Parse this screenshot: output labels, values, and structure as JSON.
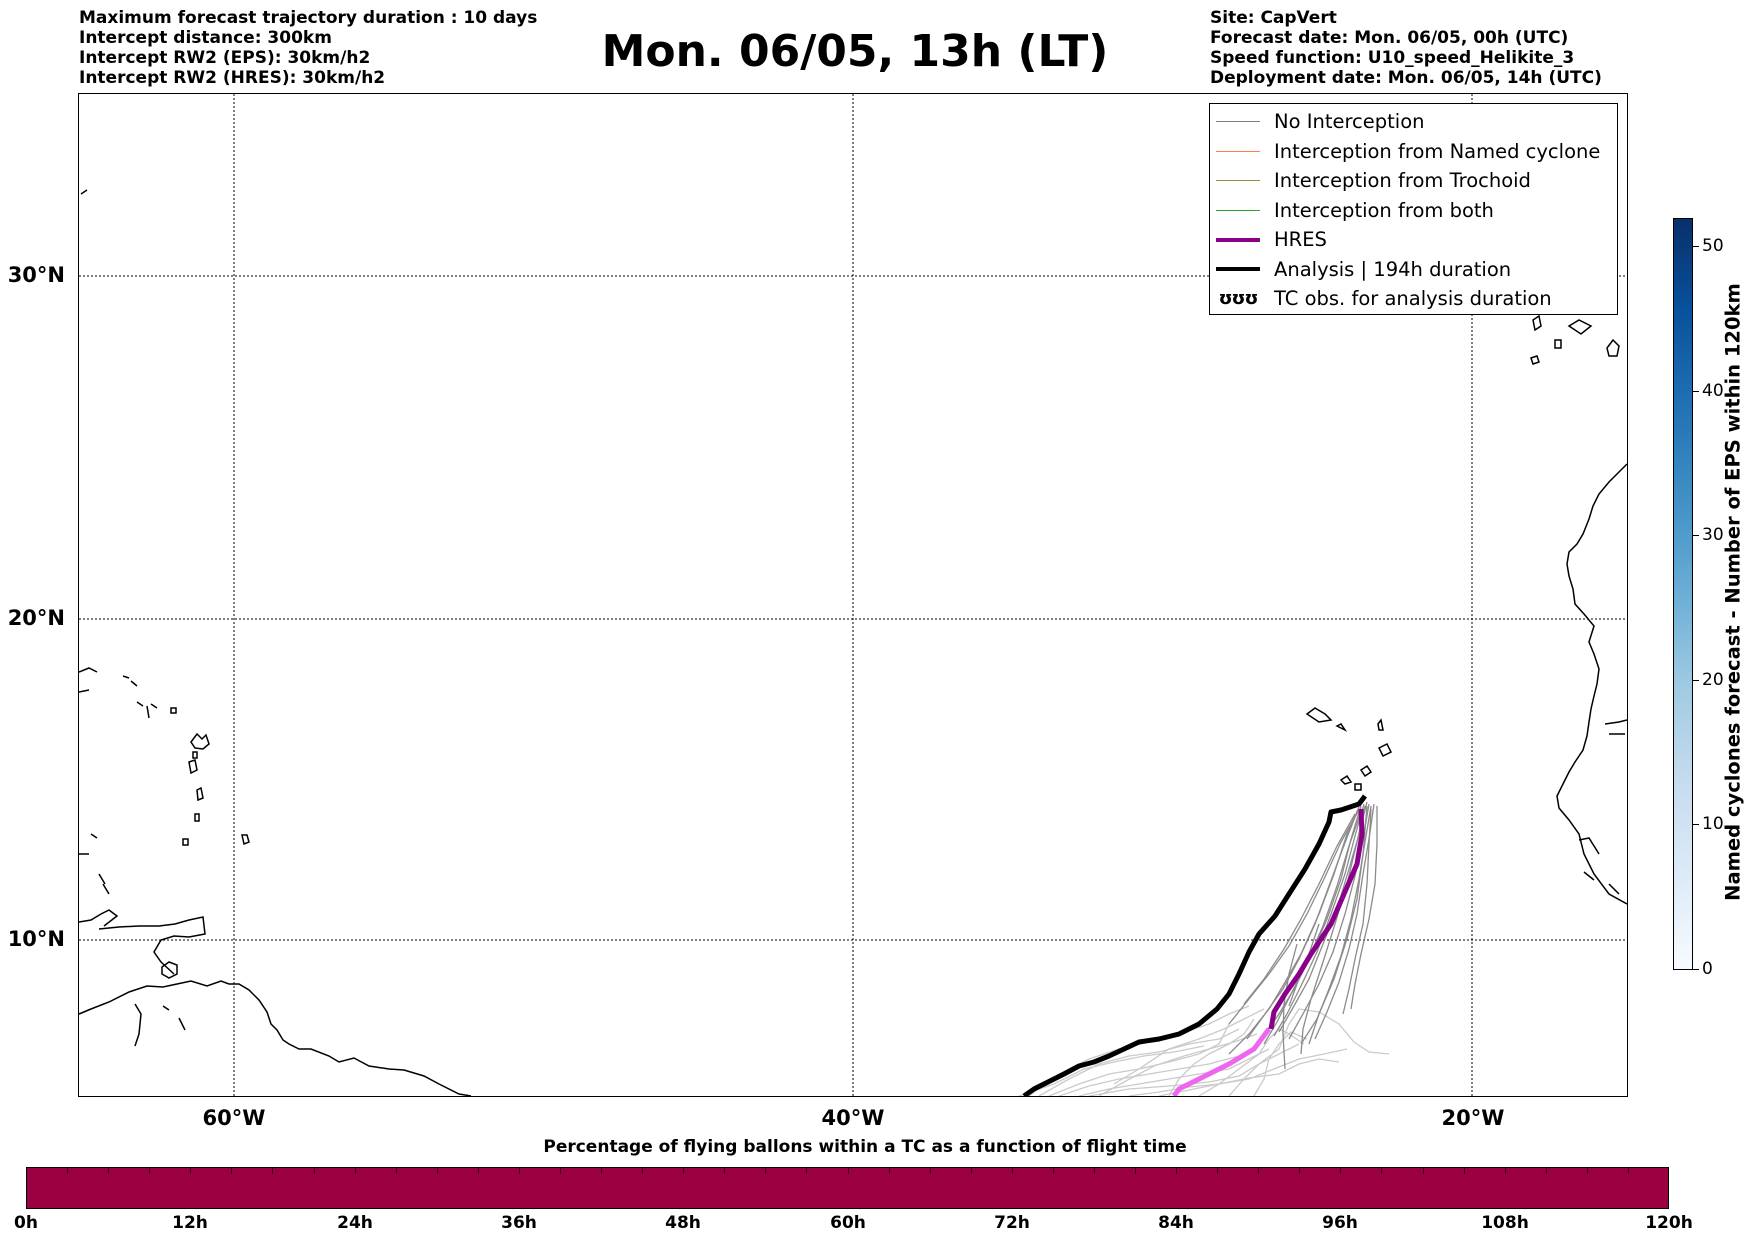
{
  "header": {
    "left_lines": [
      "Maximum forecast trajectory duration : 10 days",
      "Intercept distance: 300km",
      "Intercept RW2 (EPS):  30km/h2",
      "Intercept RW2 (HRES): 30km/h2"
    ],
    "title": "Mon. 06/05, 13h (LT)",
    "right_lines": [
      "Site: CapVert",
      "Forecast date: Mon. 06/05, 00h (UTC)",
      "Speed function: U10_speed_Helikite_3",
      "Deployment date: Mon. 06/05, 14h (UTC)"
    ]
  },
  "map": {
    "lat_labels": [
      "30°N",
      "20°N",
      "10°N"
    ],
    "lon_labels": [
      "60°W",
      "40°W",
      "20°W"
    ],
    "gridlines": true,
    "colors": {
      "no_interception": "#7f7f7f",
      "named_cyclone": "#ff7f50",
      "trochoid": "#9a8a3a",
      "both": "#2ca02c",
      "hres": "#8b008b",
      "hres_late": "#ee66ee",
      "analysis": "#000000",
      "late_trajectories": "#c8c8c8"
    }
  },
  "legend": {
    "items": [
      {
        "label": "No Interception",
        "icon": "thin-gray-line"
      },
      {
        "label": "Interception from Named cyclone",
        "icon": "thin-coral-line"
      },
      {
        "label": "Interception from Trochoid",
        "icon": "thin-olive-line"
      },
      {
        "label": "Interception from both",
        "icon": "thin-green-line"
      },
      {
        "label": "HRES",
        "icon": "thick-purple-line"
      },
      {
        "label": "Analysis | 194h duration",
        "icon": "thick-black-line"
      },
      {
        "label": "TC obs. for analysis duration",
        "icon": "cyclone-symbols",
        "marker": "ʊʊʊ"
      }
    ]
  },
  "colorbar": {
    "title": "Named cyclones forecast - Number of EPS within 120km",
    "ticks": [
      "0",
      "10",
      "20",
      "30",
      "40",
      "50"
    ],
    "range": [
      0,
      52
    ]
  },
  "flight_bar": {
    "title": "Percentage of flying ballons within a TC as a function of flight time",
    "ticks": [
      "0h",
      "12h",
      "24h",
      "36h",
      "48h",
      "60h",
      "72h",
      "84h",
      "96h",
      "108h",
      "120h"
    ],
    "fill_color": "#9b0040"
  }
}
